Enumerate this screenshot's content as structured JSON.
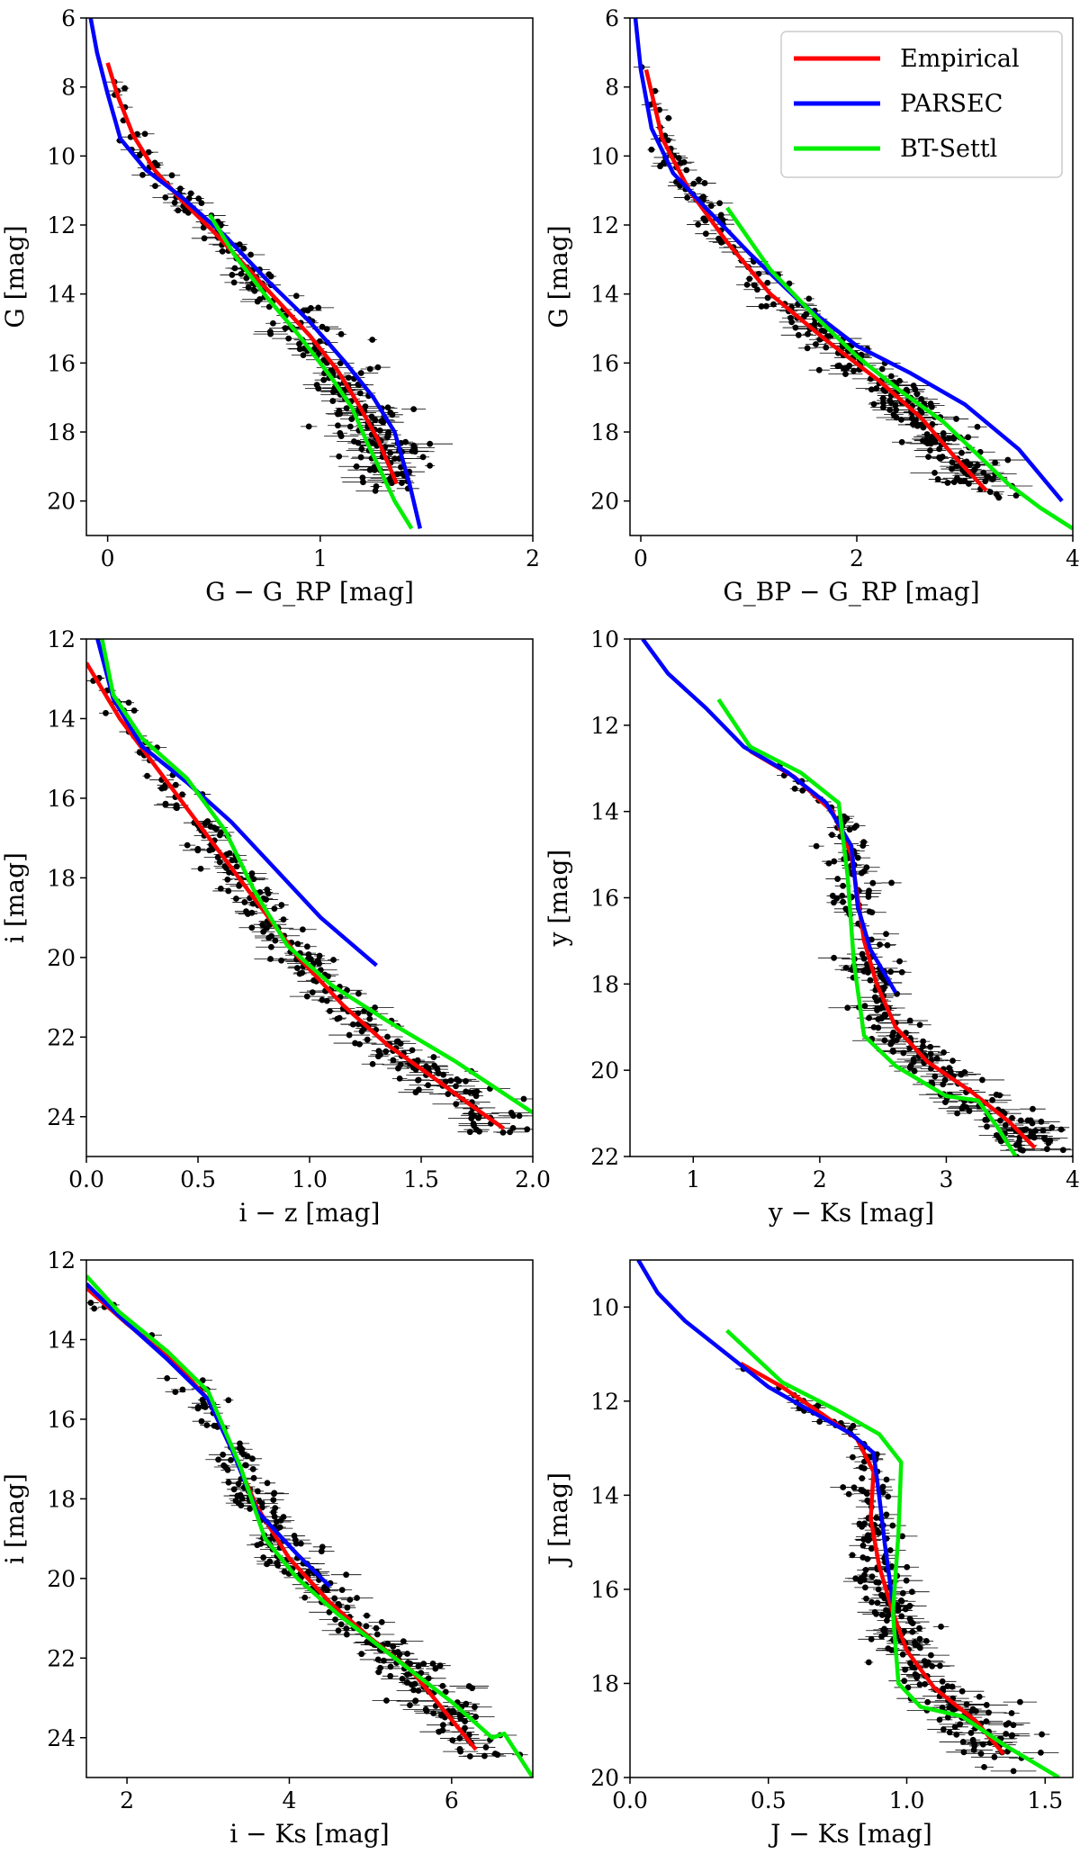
{
  "chart_data": [
    {
      "type": "scatter",
      "panel": "top-left",
      "xlabel": "G − G_RP [mag]",
      "ylabel": "G [mag]",
      "xlim": [
        -0.1,
        2.0
      ],
      "ylim": [
        21.0,
        6.0
      ],
      "xticks": [
        "0",
        "1",
        "2"
      ],
      "xtick_values": [
        0,
        1,
        2
      ],
      "yticks": [
        "6",
        "8",
        "10",
        "12",
        "14",
        "16",
        "18",
        "20"
      ],
      "ytick_values": [
        6,
        8,
        10,
        12,
        14,
        16,
        18,
        20
      ],
      "series": [
        {
          "name": "Empirical",
          "color": "#ff0000",
          "x": [
            0.0,
            0.05,
            0.12,
            0.22,
            0.35,
            0.5,
            0.65,
            0.8,
            0.95,
            1.08,
            1.18,
            1.27,
            1.36
          ],
          "y": [
            7.3,
            8.3,
            9.4,
            10.4,
            11.3,
            12.2,
            13.2,
            14.2,
            15.2,
            16.2,
            17.2,
            18.2,
            19.5
          ]
        },
        {
          "name": "PARSEC",
          "color": "#0000ff",
          "x": [
            -0.08,
            -0.05,
            0.0,
            0.06,
            0.18,
            0.35,
            0.55,
            0.75,
            0.95,
            1.12,
            1.25,
            1.35,
            1.42,
            1.47
          ],
          "y": [
            6.0,
            7.0,
            8.2,
            9.5,
            10.4,
            11.2,
            12.3,
            13.6,
            14.8,
            16.0,
            17.0,
            18.0,
            19.5,
            20.8
          ]
        },
        {
          "name": "BT-Settl",
          "color": "#00ee00",
          "x": [
            0.48,
            0.6,
            0.75,
            0.9,
            1.05,
            1.15,
            1.22,
            1.29,
            1.35,
            1.43
          ],
          "y": [
            11.7,
            12.9,
            14.1,
            15.2,
            16.4,
            17.3,
            18.3,
            19.2,
            20.0,
            20.8
          ]
        }
      ]
    },
    {
      "type": "scatter",
      "panel": "top-right",
      "xlabel": "G_BP − G_RP [mag]",
      "ylabel": "G [mag]",
      "xlim": [
        -0.1,
        4.0
      ],
      "ylim": [
        21.0,
        6.0
      ],
      "xticks": [
        "0",
        "2",
        "4"
      ],
      "xtick_values": [
        0,
        2,
        4
      ],
      "yticks": [
        "6",
        "8",
        "10",
        "12",
        "14",
        "16",
        "18",
        "20"
      ],
      "ytick_values": [
        6,
        8,
        10,
        12,
        14,
        16,
        18,
        20
      ],
      "series": [
        {
          "name": "Empirical",
          "color": "#ff0000",
          "x": [
            0.05,
            0.2,
            0.45,
            0.8,
            1.2,
            1.7,
            2.2,
            2.6,
            2.9,
            3.2
          ],
          "y": [
            7.5,
            9.5,
            11.0,
            12.5,
            14.0,
            15.3,
            16.5,
            17.6,
            18.7,
            19.7
          ]
        },
        {
          "name": "PARSEC",
          "color": "#0000ff",
          "x": [
            -0.05,
            0.0,
            0.1,
            0.3,
            0.6,
            1.0,
            1.5,
            2.0,
            2.5,
            3.0,
            3.5,
            3.9
          ],
          "y": [
            6.0,
            7.5,
            9.2,
            10.5,
            11.5,
            12.8,
            14.3,
            15.5,
            16.3,
            17.2,
            18.5,
            20.0
          ]
        },
        {
          "name": "BT-Settl",
          "color": "#00ee00",
          "x": [
            0.8,
            1.2,
            1.6,
            2.0,
            2.4,
            2.8,
            3.1,
            3.4,
            3.7,
            4.0
          ],
          "y": [
            11.5,
            13.3,
            14.6,
            15.8,
            16.8,
            17.7,
            18.6,
            19.5,
            20.2,
            20.8
          ]
        }
      ]
    },
    {
      "type": "scatter",
      "panel": "middle-left",
      "xlabel": "i − z [mag]",
      "ylabel": "i [mag]",
      "xlim": [
        0.0,
        2.0
      ],
      "ylim": [
        25.0,
        12.0
      ],
      "xticks": [
        "0.0",
        "0.5",
        "1.0",
        "1.5",
        "2.0"
      ],
      "xtick_values": [
        0.0,
        0.5,
        1.0,
        1.5,
        2.0
      ],
      "yticks": [
        "12",
        "14",
        "16",
        "18",
        "20",
        "22",
        "24"
      ],
      "ytick_values": [
        12,
        14,
        16,
        18,
        20,
        22,
        24
      ],
      "series": [
        {
          "name": "Empirical",
          "color": "#ff0000",
          "x": [
            0.0,
            0.15,
            0.35,
            0.55,
            0.75,
            0.95,
            1.15,
            1.35,
            1.55,
            1.72,
            1.87
          ],
          "y": [
            12.6,
            14.0,
            15.5,
            17.0,
            18.5,
            20.0,
            21.2,
            22.2,
            23.0,
            23.7,
            24.3
          ]
        },
        {
          "name": "PARSEC",
          "color": "#0000ff",
          "x": [
            0.05,
            0.12,
            0.25,
            0.45,
            0.65,
            0.85,
            1.05,
            1.3
          ],
          "y": [
            12.0,
            13.5,
            14.7,
            15.6,
            16.6,
            17.8,
            19.0,
            20.2
          ]
        },
        {
          "name": "BT-Settl",
          "color": "#00ee00",
          "x": [
            0.07,
            0.12,
            0.25,
            0.45,
            0.62,
            0.75,
            0.9,
            1.1,
            1.35,
            1.65,
            2.0
          ],
          "y": [
            12.0,
            13.4,
            14.5,
            15.5,
            16.8,
            18.3,
            19.7,
            20.7,
            21.6,
            22.6,
            23.9
          ]
        }
      ]
    },
    {
      "type": "scatter",
      "panel": "middle-right",
      "xlabel": "y − Ks [mag]",
      "ylabel": "y [mag]",
      "xlim": [
        0.5,
        4.0
      ],
      "ylim": [
        22.0,
        10.0
      ],
      "xticks": [
        "1",
        "2",
        "3",
        "4"
      ],
      "xtick_values": [
        1,
        2,
        3,
        4
      ],
      "yticks": [
        "10",
        "12",
        "14",
        "16",
        "18",
        "20",
        "22"
      ],
      "ytick_values": [
        10,
        12,
        14,
        16,
        18,
        20,
        22
      ],
      "series": [
        {
          "name": "Empirical",
          "color": "#ff0000",
          "x": [
            1.45,
            1.8,
            2.1,
            2.25,
            2.3,
            2.35,
            2.45,
            2.6,
            2.85,
            3.2,
            3.5,
            3.7
          ],
          "y": [
            12.6,
            13.2,
            14.0,
            15.0,
            16.0,
            17.0,
            18.0,
            19.0,
            19.8,
            20.5,
            21.2,
            21.8
          ]
        },
        {
          "name": "PARSEC",
          "color": "#0000ff",
          "x": [
            0.6,
            0.8,
            1.1,
            1.4,
            1.75,
            2.05,
            2.25,
            2.3,
            2.4,
            2.6
          ],
          "y": [
            10.0,
            10.8,
            11.6,
            12.5,
            13.1,
            13.8,
            14.8,
            16.2,
            17.2,
            18.2
          ]
        },
        {
          "name": "BT-Settl",
          "color": "#00ee00",
          "x": [
            1.2,
            1.45,
            1.85,
            2.15,
            2.22,
            2.27,
            2.35,
            2.6,
            3.0,
            3.25,
            3.4,
            3.55
          ],
          "y": [
            11.4,
            12.5,
            13.1,
            13.8,
            15.5,
            17.5,
            19.2,
            19.9,
            20.6,
            20.7,
            21.3,
            22.0
          ]
        }
      ]
    },
    {
      "type": "scatter",
      "panel": "bottom-left",
      "xlabel": "i − Ks [mag]",
      "ylabel": "i [mag]",
      "xlim": [
        1.5,
        7.0
      ],
      "ylim": [
        25.0,
        12.0
      ],
      "xticks": [
        "2",
        "4",
        "6"
      ],
      "xtick_values": [
        2,
        4,
        6
      ],
      "yticks": [
        "12",
        "14",
        "16",
        "18",
        "20",
        "22",
        "24"
      ],
      "ytick_values": [
        12,
        14,
        16,
        18,
        20,
        22,
        24
      ],
      "series": [
        {
          "name": "Empirical",
          "color": "#ff0000",
          "x": [
            1.5,
            2.0,
            2.6,
            3.0,
            3.3,
            3.6,
            4.0,
            4.5,
            5.0,
            5.5,
            6.3
          ],
          "y": [
            12.7,
            13.6,
            14.6,
            15.5,
            16.8,
            18.2,
            19.5,
            20.6,
            21.5,
            22.3,
            24.3
          ]
        },
        {
          "name": "PARSEC",
          "color": "#0000ff",
          "x": [
            1.5,
            1.9,
            2.5,
            3.0,
            3.3,
            3.6,
            4.1,
            4.5
          ],
          "y": [
            12.6,
            13.4,
            14.5,
            15.5,
            16.8,
            18.3,
            19.4,
            20.2
          ]
        },
        {
          "name": "BT-Settl",
          "color": "#00ee00",
          "x": [
            1.5,
            1.9,
            2.5,
            3.0,
            3.4,
            3.7,
            4.1,
            4.6,
            5.3,
            6.0,
            6.5,
            6.65,
            7.0
          ],
          "y": [
            12.4,
            13.3,
            14.3,
            15.3,
            17.2,
            19.0,
            20.0,
            20.9,
            22.0,
            23.1,
            24.0,
            23.9,
            25.0
          ]
        }
      ]
    },
    {
      "type": "scatter",
      "panel": "bottom-right",
      "xlabel": "J − Ks [mag]",
      "ylabel": "J [mag]",
      "xlim": [
        0.0,
        1.6
      ],
      "ylim": [
        20.0,
        9.0
      ],
      "xticks": [
        "0.0",
        "0.5",
        "1.0",
        "1.5"
      ],
      "xtick_values": [
        0.0,
        0.5,
        1.0,
        1.5
      ],
      "yticks": [
        "10",
        "12",
        "14",
        "16",
        "18",
        "20"
      ],
      "ytick_values": [
        10,
        12,
        14,
        16,
        18,
        20
      ],
      "series": [
        {
          "name": "Empirical",
          "color": "#ff0000",
          "x": [
            0.4,
            0.55,
            0.7,
            0.82,
            0.88,
            0.87,
            0.9,
            0.95,
            1.0,
            1.1,
            1.25,
            1.35
          ],
          "y": [
            11.2,
            11.7,
            12.3,
            12.8,
            13.5,
            14.5,
            15.5,
            16.5,
            17.3,
            18.1,
            18.8,
            19.5
          ]
        },
        {
          "name": "PARSEC",
          "color": "#0000ff",
          "x": [
            0.03,
            0.1,
            0.2,
            0.35,
            0.5,
            0.65,
            0.8,
            0.88,
            0.9,
            0.92,
            0.95
          ],
          "y": [
            9.0,
            9.7,
            10.3,
            11.0,
            11.7,
            12.2,
            12.7,
            13.1,
            14.0,
            15.0,
            16.3
          ]
        },
        {
          "name": "BT-Settl",
          "color": "#00ee00",
          "x": [
            0.35,
            0.55,
            0.75,
            0.9,
            0.98,
            0.97,
            0.95,
            0.97,
            1.05,
            1.2,
            1.35,
            1.55
          ],
          "y": [
            10.5,
            11.6,
            12.2,
            12.7,
            13.3,
            14.8,
            16.5,
            18.0,
            18.5,
            18.7,
            19.3,
            20.0
          ]
        }
      ]
    }
  ],
  "legend": {
    "entries": [
      {
        "label": "Empirical",
        "color": "#ff0000"
      },
      {
        "label": "PARSEC",
        "color": "#0000ff"
      },
      {
        "label": "BT-Settl",
        "color": "#00ee00"
      }
    ],
    "placement": "top-right panel, upper-right"
  }
}
